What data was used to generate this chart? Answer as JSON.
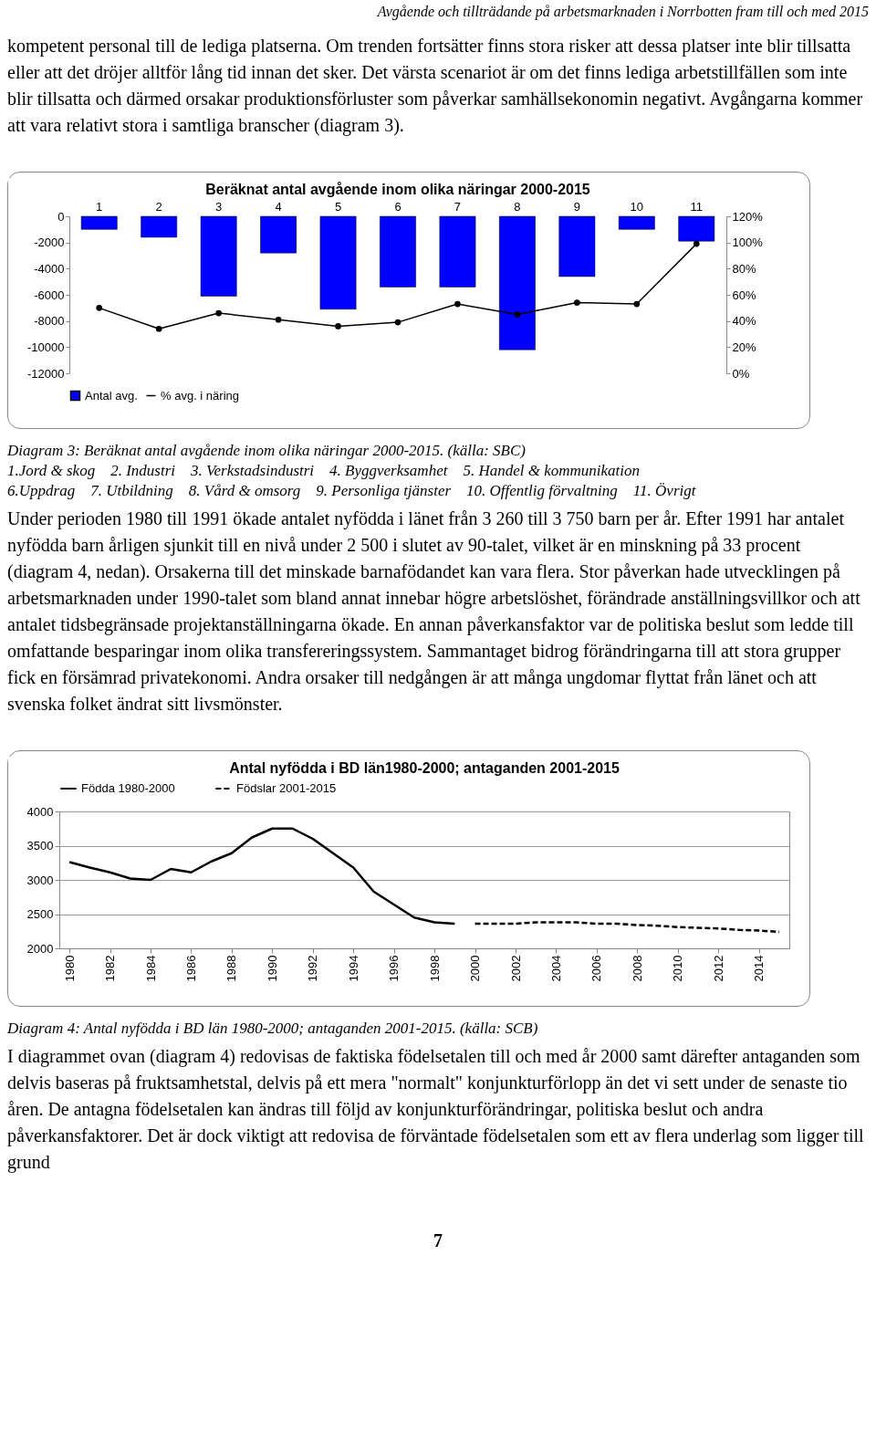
{
  "chart_data": [
    {
      "type": "bar",
      "title": "Beräknat antal avgående inom olika näringar 2000-2015",
      "categories": [
        "1",
        "2",
        "3",
        "4",
        "5",
        "6",
        "7",
        "8",
        "9",
        "10",
        "11"
      ],
      "series": [
        {
          "name": "Antal avg.",
          "color": "#0000ff",
          "values": [
            -1000,
            -1600,
            -6100,
            -2800,
            -7100,
            -5400,
            -5400,
            -10200,
            -4600,
            -1000,
            -1900
          ]
        },
        {
          "name": "% avg. i näring",
          "type": "line",
          "axis": "y2",
          "color": "#000000",
          "values": [
            50,
            34,
            46,
            41,
            36,
            39,
            53,
            45,
            54,
            53,
            99
          ]
        }
      ],
      "ylim": [
        -12000,
        0
      ],
      "yticks": [
        -12000,
        -10000,
        -8000,
        -6000,
        -4000,
        -2000,
        0
      ],
      "y2lim": [
        0,
        120
      ],
      "y2ticks": [
        {
          "value": 0,
          "label": "0%"
        },
        {
          "value": 20,
          "label": "20%"
        },
        {
          "value": 40,
          "label": "40%"
        },
        {
          "value": 60,
          "label": "60%"
        },
        {
          "value": 80,
          "label": "80%"
        },
        {
          "value": 100,
          "label": "100%"
        },
        {
          "value": 120,
          "label": "120%"
        }
      ],
      "marker": "circle",
      "legend": "bottom",
      "annotations": [
        "Avgående och tillträdande på arbetsmarknaden i Norrbotten fram till och med 2015",
        "kompetent personal till de lediga platserna. Om trenden fortsätter finns stora risker att dessa platser inte blir tillsatta eller att det dröjer alltför lång tid innan det sker. Det värsta scenariot är om det finns lediga arbetstillfällen som inte blir tillsatta och därmed orsakar produktionsförluster som påverkar samhällsekonomin negativt. Avgångarna kommer att vara relativt stora i samtliga branscher (diagram 3).",
        "Diagram 3: Beräknat antal avgående inom olika näringar 2000-2015. (källa: SBC)",
        "1.Jord & skog    2. Industri    3. Verkstadsindustri    4. Byggverksamhet    5. Handel & kommunikation",
        "6.Uppdrag    7. Utbildning    8. Vård & omsorg    9. Personliga tjänster    10. Offentlig förvaltning    11. Övrigt",
        "Under perioden 1980 till 1991 ökade antalet nyfödda i länet från 3 260 till 3 750 barn per år. Efter 1991 har antalet nyfödda barn årligen sjunkit till en nivå under 2 500 i slutet av 90-talet, vilket är en minskning på 33 procent (diagram 4, nedan). Orsakerna till det minskade barnafödandet kan vara flera. Stor påverkan hade utvecklingen på arbetsmarknaden under 1990-talet som bland annat innebar högre arbetslöshet, förändrade anställningsvillkor och att antalet tidsbegränsade projektanställningarna ökade. En annan påverkansfaktor var de politiska beslut som ledde till omfattande besparingar inom olika transfereringssystem. Sammantaget bidrog förändringarna till att stora grupper fick en försämrad privatekonomi. Andra orsaker till nedgången är att många ungdomar flyttat från länet och att svenska folket ändrat sitt livsmönster."
      ]
    },
    {
      "type": "line",
      "title": "Antal nyfödda i BD län1980-2000; antaganden 2001-2015",
      "series": [
        {
          "name": "Födda 1980-2000",
          "color": "#000000",
          "line_style": "solid",
          "x": [
            1980,
            1981,
            1982,
            1983,
            1984,
            1985,
            1986,
            1987,
            1988,
            1989,
            1990,
            1991,
            1992,
            1993,
            1994,
            1995,
            1996,
            1997,
            1998,
            1999
          ],
          "values": [
            3260,
            3180,
            3110,
            3020,
            3000,
            3160,
            3110,
            3270,
            3390,
            3620,
            3750,
            3750,
            3600,
            3390,
            3180,
            2830,
            2640,
            2450,
            2380,
            2360
          ]
        },
        {
          "name": "Födslar 2001-2015",
          "color": "#000000",
          "line_style": "dashed",
          "x": [
            2000,
            2001,
            2002,
            2003,
            2004,
            2005,
            2006,
            2007,
            2008,
            2009,
            2010,
            2011,
            2012,
            2013,
            2014,
            2015
          ],
          "values": [
            2360,
            2360,
            2360,
            2380,
            2380,
            2380,
            2360,
            2360,
            2340,
            2330,
            2310,
            2300,
            2290,
            2270,
            2260,
            2240
          ]
        }
      ],
      "xlim": [
        1979.5,
        2015.5
      ],
      "xticks": [
        1980,
        1982,
        1984,
        1986,
        1988,
        1990,
        1992,
        1994,
        1996,
        1998,
        2000,
        2002,
        2004,
        2006,
        2008,
        2010,
        2012,
        2014
      ],
      "ylim": [
        2000,
        4000
      ],
      "yticks": [
        2000,
        2500,
        3000,
        3500,
        4000
      ],
      "grid": "y",
      "legend": "top",
      "annotations": [
        "Diagram 4: Antal nyfödda i BD län 1980-2000; antaganden 2001-2015. (källa: SCB)",
        "I diagrammet ovan (diagram 4) redovisas de faktiska födelsetalen till och med år 2000 samt därefter antaganden som delvis baseras på fruktsamhetstal, delvis på ett mera \"normalt\" konjunkturförlopp än det vi sett under de senaste tio åren. De antagna födelsetalen kan ändras till följd av konjunkturförändringar, politiska beslut och andra påverkansfaktorer. Det är dock viktigt att redovisa de förväntade födelsetalen som ett av flera underlag som ligger till grund",
        "7"
      ]
    }
  ]
}
